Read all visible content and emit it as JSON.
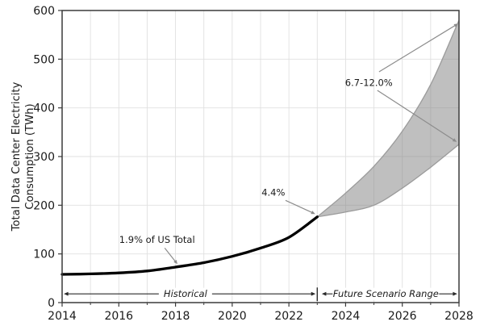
{
  "chart_data": {
    "type": "line",
    "title": "",
    "xlabel": "",
    "ylabel_lines": [
      "Total Data Center Electricity",
      "Consumption (TWh)"
    ],
    "xlim": [
      2014,
      2028
    ],
    "ylim": [
      0,
      600
    ],
    "x_major_ticks": [
      2014,
      2016,
      2018,
      2020,
      2022,
      2024,
      2026,
      2028
    ],
    "x_minor_ticks": [
      2015,
      2017,
      2019,
      2021,
      2023,
      2025,
      2027
    ],
    "y_ticks": [
      0,
      100,
      200,
      300,
      400,
      500,
      600
    ],
    "grid": true,
    "legend": "none",
    "series": [
      {
        "name": "Historical",
        "type": "line",
        "x": [
          2014,
          2015,
          2016,
          2017,
          2018,
          2019,
          2020,
          2021,
          2022,
          2023
        ],
        "values": [
          58,
          59,
          61,
          65,
          73,
          82,
          95,
          112,
          134,
          176
        ]
      },
      {
        "name": "Future Scenario Range",
        "type": "band",
        "x": [
          2023,
          2024,
          2025,
          2026,
          2027,
          2028
        ],
        "lower": [
          176,
          186,
          200,
          235,
          278,
          325
        ],
        "upper": [
          176,
          225,
          280,
          352,
          448,
          580
        ]
      }
    ],
    "annotations": [
      {
        "label": "1.9% of US Total",
        "text_x": 2017.35,
        "text_y": 129,
        "arrows": [
          {
            "x1": 2017.62,
            "y1": 112,
            "x2": 2018.07,
            "y2": 79
          }
        ]
      },
      {
        "label": "4.4%",
        "text_x": 2021.45,
        "text_y": 226,
        "arrows": [
          {
            "x1": 2021.88,
            "y1": 210,
            "x2": 2022.93,
            "y2": 182
          }
        ]
      },
      {
        "label": "6.7-12.0%",
        "text_x": 2024.82,
        "text_y": 452,
        "arrows": [
          {
            "x1": 2025.18,
            "y1": 474,
            "x2": 2027.97,
            "y2": 573
          },
          {
            "x1": 2025.12,
            "y1": 436,
            "x2": 2027.92,
            "y2": 330
          }
        ]
      }
    ],
    "range_arrows": [
      {
        "label": "Historical",
        "from": 2014.06,
        "to": 2022.94,
        "y": 18,
        "label_x": 2018.35
      },
      {
        "label": "Future Scenario Range",
        "from": 2023.16,
        "to": 2027.94,
        "y": 18,
        "label_x": 2025.42
      }
    ],
    "divider_x": 2023,
    "divider_y": [
      3,
      31
    ],
    "colors": {
      "historical_line": "#000000",
      "band_fill": "#808080",
      "band_fill_alpha": 0.5,
      "band_edge": "#9b9b9b",
      "grid": "#e0e0e0",
      "spine": "#3a3a3a",
      "annotation_arrow": "#8c8c8c",
      "range_arrow": "#2a2a2a",
      "text": "#1a1a1a"
    }
  }
}
